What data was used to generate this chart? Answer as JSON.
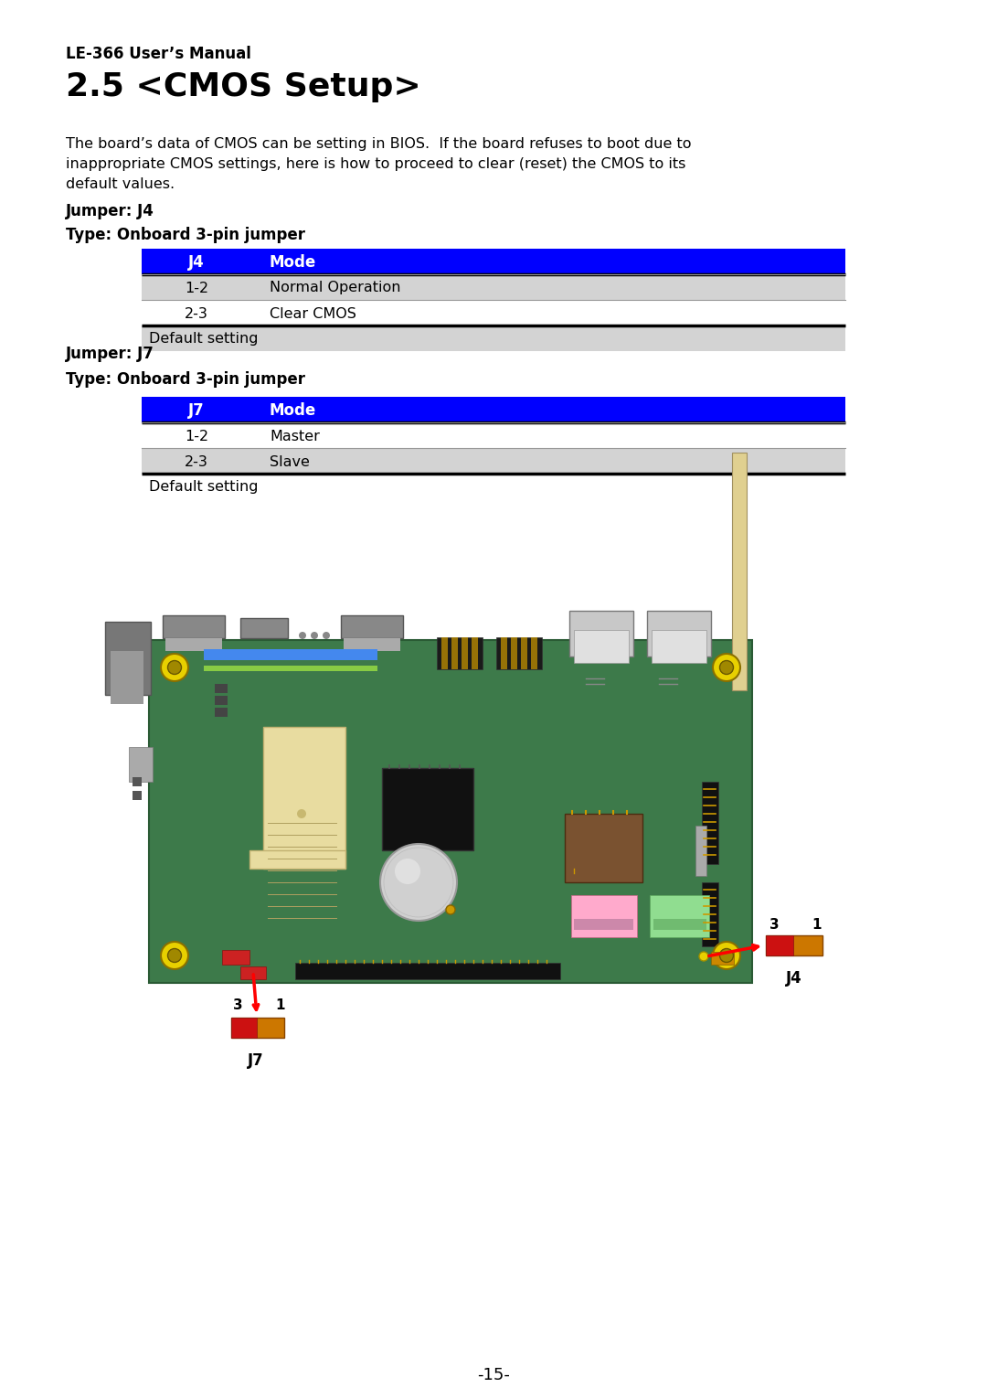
{
  "title_small": "LE-366 User’s Manual",
  "title_large": "2.5 <CMOS Setup>",
  "body_text_line1": "The board’s data of CMOS can be setting in BIOS.  If the board refuses to boot due to",
  "body_text_line2": "inappropriate CMOS settings, here is how to proceed to clear (reset) the CMOS to its",
  "body_text_line3": "default values.",
  "jumper1_label": "Jumper: J4",
  "type1_label": "Type: Onboard 3-pin jumper",
  "table1_header": [
    "J4",
    "Mode"
  ],
  "table1_rows": [
    [
      "1-2",
      "Normal Operation"
    ],
    [
      "2-3",
      "Clear CMOS"
    ],
    [
      "Default setting",
      ""
    ]
  ],
  "table1_row_colors": [
    "#d3d3d3",
    "#ffffff",
    "#d3d3d3"
  ],
  "jumper2_label": "Jumper: J7",
  "type2_label": "Type: Onboard 3-pin jumper",
  "table2_header": [
    "J7",
    "Mode"
  ],
  "table2_rows": [
    [
      "1-2",
      "Master"
    ],
    [
      "2-3",
      "Slave"
    ],
    [
      "Default setting",
      ""
    ]
  ],
  "table2_row_colors": [
    "#ffffff",
    "#d3d3d3",
    "#ffffff"
  ],
  "header_bg": "#0000ff",
  "header_fg": "#ffffff",
  "page_number": "-15-",
  "bg_color": "#ffffff",
  "pcb_color": "#3d7a4a",
  "pcb_border": "#2a5a34",
  "screw_color": "#e8d000",
  "screw_inner": "#a08800"
}
